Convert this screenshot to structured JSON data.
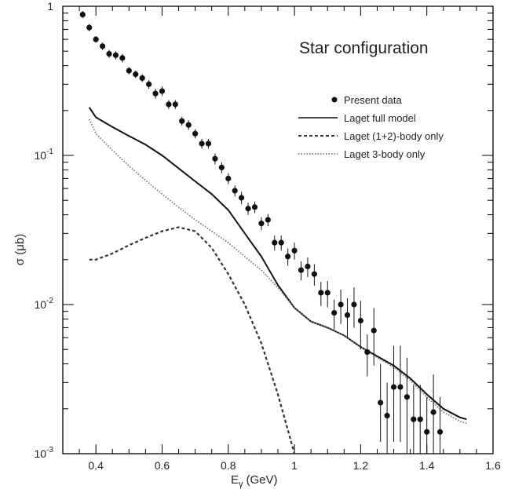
{
  "chart_data": {
    "type": "scatter",
    "title": "Star configuration",
    "xlabel": "E",
    "xlabel_sub": "γ",
    "xlabel_unit": "(GeV)",
    "ylabel": "σ (μb)",
    "xlim": [
      0.3,
      1.6
    ],
    "ylim": [
      0.001,
      1
    ],
    "yscale": "log",
    "x_ticks": [
      "0.4",
      "0.6",
      "0.8",
      "1",
      "1.2",
      "1.4",
      "1.6"
    ],
    "y_ticks": [
      {
        "base": "10",
        "exp": "-3"
      },
      {
        "base": "10",
        "exp": "-2"
      },
      {
        "base": "10",
        "exp": "-1"
      },
      {
        "base": "1",
        "exp": ""
      }
    ],
    "legend_position": "top-right",
    "legend": [
      {
        "label": "Present data",
        "style": "points",
        "color": "#111111"
      },
      {
        "label": "Laget full model",
        "style": "solid",
        "color": "#111111"
      },
      {
        "label": "Laget (1+2)-body only",
        "style": "dashed",
        "color": "#333333"
      },
      {
        "label": "Laget 3-body only",
        "style": "dotted",
        "color": "#777777"
      }
    ],
    "series": [
      {
        "name": "Present data",
        "kind": "points",
        "x": [
          0.36,
          0.38,
          0.4,
          0.42,
          0.44,
          0.46,
          0.48,
          0.5,
          0.52,
          0.54,
          0.56,
          0.58,
          0.6,
          0.62,
          0.64,
          0.66,
          0.68,
          0.7,
          0.72,
          0.74,
          0.76,
          0.78,
          0.8,
          0.82,
          0.84,
          0.86,
          0.88,
          0.9,
          0.92,
          0.94,
          0.96,
          0.98,
          1.0,
          1.02,
          1.04,
          1.06,
          1.08,
          1.1,
          1.12,
          1.14,
          1.16,
          1.18,
          1.2,
          1.22,
          1.24,
          1.26,
          1.28,
          1.3,
          1.32,
          1.34,
          1.36,
          1.38,
          1.4,
          1.42,
          1.44
        ],
        "y": [
          0.88,
          0.72,
          0.6,
          0.54,
          0.48,
          0.47,
          0.45,
          0.37,
          0.35,
          0.33,
          0.3,
          0.26,
          0.27,
          0.22,
          0.22,
          0.17,
          0.16,
          0.14,
          0.12,
          0.12,
          0.095,
          0.083,
          0.07,
          0.058,
          0.052,
          0.044,
          0.045,
          0.035,
          0.037,
          0.026,
          0.026,
          0.021,
          0.023,
          0.017,
          0.018,
          0.016,
          0.012,
          0.012,
          0.0088,
          0.01,
          0.0085,
          0.01,
          0.0078,
          0.0048,
          0.0067,
          0.0022,
          0.0018,
          0.0028,
          0.0028,
          0.0024,
          0.0017,
          0.0017,
          0.0014,
          0.0019,
          0.0014
        ],
        "yerr_low": [
          0.05,
          0.04,
          0.03,
          0.03,
          0.03,
          0.03,
          0.03,
          0.02,
          0.02,
          0.02,
          0.02,
          0.02,
          0.02,
          0.015,
          0.015,
          0.012,
          0.012,
          0.01,
          0.009,
          0.009,
          0.008,
          0.007,
          0.006,
          0.005,
          0.005,
          0.004,
          0.004,
          0.0035,
          0.0035,
          0.003,
          0.003,
          0.0028,
          0.003,
          0.0025,
          0.0027,
          0.0026,
          0.0022,
          0.0024,
          0.002,
          0.0026,
          0.0025,
          0.003,
          0.0028,
          0.0015,
          0.0028,
          0.001,
          0.0008,
          0.0016,
          0.0016,
          0.0014,
          0.0007,
          0.0007,
          0.0004,
          0.001,
          0.0004
        ],
        "yerr_high": [
          0.05,
          0.04,
          0.03,
          0.03,
          0.03,
          0.03,
          0.03,
          0.02,
          0.02,
          0.02,
          0.02,
          0.02,
          0.02,
          0.015,
          0.015,
          0.012,
          0.012,
          0.01,
          0.009,
          0.009,
          0.008,
          0.007,
          0.006,
          0.005,
          0.005,
          0.004,
          0.004,
          0.0035,
          0.0035,
          0.003,
          0.003,
          0.0028,
          0.003,
          0.0025,
          0.0027,
          0.0026,
          0.0022,
          0.0024,
          0.002,
          0.0026,
          0.0025,
          0.003,
          0.0028,
          0.0015,
          0.0028,
          0.0018,
          0.0012,
          0.0025,
          0.0025,
          0.002,
          0.0012,
          0.0012,
          0.001,
          0.0015,
          0.001
        ]
      },
      {
        "name": "Laget full model",
        "kind": "line",
        "dash": "solid",
        "color": "#111111",
        "x": [
          0.38,
          0.4,
          0.45,
          0.5,
          0.55,
          0.6,
          0.65,
          0.7,
          0.75,
          0.8,
          0.85,
          0.9,
          0.95,
          1.0,
          1.05,
          1.1,
          1.15,
          1.2,
          1.25,
          1.3,
          1.35,
          1.4,
          1.45,
          1.5,
          1.52
        ],
        "y": [
          0.21,
          0.18,
          0.155,
          0.135,
          0.118,
          0.1,
          0.082,
          0.067,
          0.055,
          0.043,
          0.03,
          0.021,
          0.0135,
          0.0095,
          0.0077,
          0.007,
          0.0062,
          0.0052,
          0.0045,
          0.0039,
          0.0032,
          0.0025,
          0.002,
          0.00175,
          0.0017
        ]
      },
      {
        "name": "Laget (1+2)-body only",
        "kind": "line",
        "dash": "dashed",
        "color": "#333333",
        "x": [
          0.38,
          0.4,
          0.45,
          0.5,
          0.55,
          0.6,
          0.65,
          0.7,
          0.75,
          0.8,
          0.85,
          0.9,
          0.95,
          1.0
        ],
        "y": [
          0.02,
          0.02,
          0.022,
          0.025,
          0.028,
          0.031,
          0.033,
          0.031,
          0.024,
          0.016,
          0.01,
          0.0055,
          0.0025,
          0.001
        ]
      },
      {
        "name": "Laget 3-body only",
        "kind": "line",
        "dash": "dotted",
        "color": "#777777",
        "x": [
          0.38,
          0.4,
          0.45,
          0.5,
          0.55,
          0.6,
          0.65,
          0.7,
          0.75,
          0.8,
          0.85,
          0.9,
          0.95,
          1.0,
          1.05,
          1.1,
          1.15,
          1.2,
          1.25,
          1.3,
          1.35,
          1.4,
          1.45,
          1.5,
          1.52
        ],
        "y": [
          0.175,
          0.14,
          0.108,
          0.085,
          0.068,
          0.055,
          0.045,
          0.037,
          0.031,
          0.026,
          0.021,
          0.017,
          0.013,
          0.0095,
          0.0077,
          0.007,
          0.0062,
          0.0052,
          0.0044,
          0.0038,
          0.0031,
          0.0024,
          0.0019,
          0.00165,
          0.0016
        ]
      }
    ]
  }
}
